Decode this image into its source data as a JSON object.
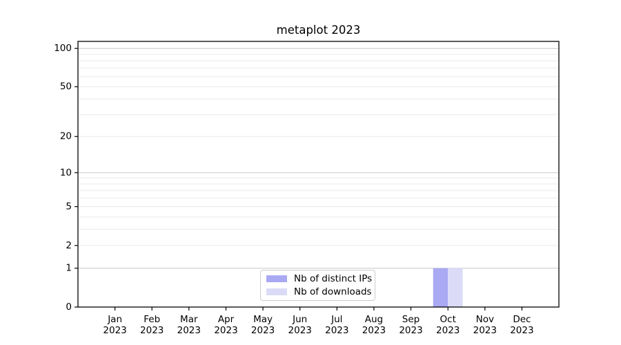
{
  "figure": {
    "background": "#ffffff"
  },
  "chart_data": {
    "type": "bar",
    "title": "metaplot 2023",
    "categories": [
      "Jan",
      "Feb",
      "Mar",
      "Apr",
      "May",
      "Jun",
      "Jul",
      "Aug",
      "Sep",
      "Oct",
      "Nov",
      "Dec"
    ],
    "x_tick_year_line": "2023",
    "series": [
      {
        "name": "Nb of distinct IPs",
        "color": "#a9a9f4",
        "values": [
          0,
          0,
          0,
          0,
          0,
          0,
          0,
          0,
          0,
          1,
          0,
          0
        ]
      },
      {
        "name": "Nb of downloads",
        "color": "#dbdbf8",
        "values": [
          0,
          0,
          0,
          0,
          0,
          0,
          0,
          0,
          0,
          1,
          0,
          0
        ]
      }
    ],
    "xlabel": "",
    "ylabel": "",
    "y_scale": "log1p",
    "ylim": [
      0,
      113.5
    ],
    "y_tick_values": [
      0,
      1,
      2,
      5,
      10,
      20,
      50,
      100
    ],
    "y_major_gridlines": [
      1,
      10,
      100
    ],
    "y_minor_gridlines": [
      2,
      3,
      4,
      5,
      6,
      7,
      8,
      9,
      20,
      30,
      40,
      50,
      60,
      70,
      80,
      90
    ],
    "grid": true,
    "legend_position": "lower center",
    "colors": {
      "grid_major": "#c8c8c8",
      "grid_minor": "#eaeaea",
      "axis": "#000000",
      "text": "#000000"
    }
  }
}
